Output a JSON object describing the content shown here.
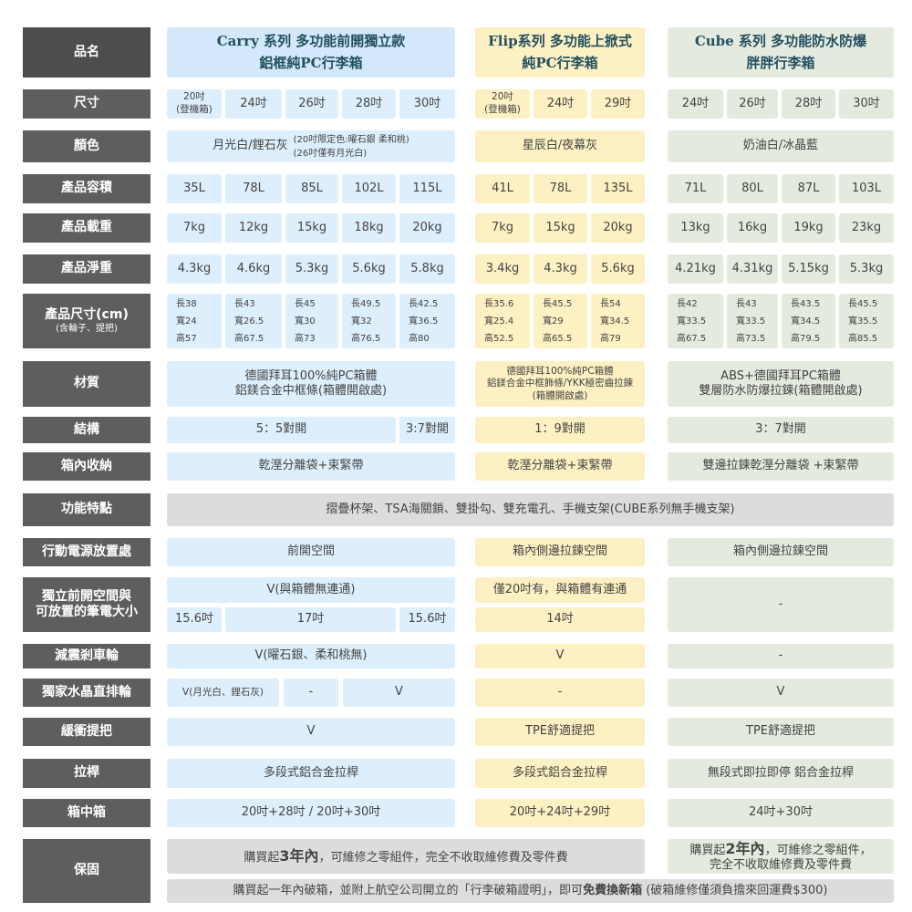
{
  "colors": {
    "label_bg": "#5e5e5e",
    "carry": "#ddeefc",
    "flip": "#fdf0c2",
    "cube": "#e5eadf",
    "shared": "#dcdcdc",
    "header_text": "#23505f"
  },
  "header": {
    "label": "品名",
    "carry": "Carry 系列  多功能前開獨立款\n鋁框純PC行李箱",
    "flip": "Flip系列 多功能上掀式\n純PC行李箱",
    "cube": "Cube 系列  多功能防水防爆\n胖胖行李箱"
  },
  "size": {
    "label": "尺寸",
    "carry": [
      "20吋\n(登機箱)",
      "24吋",
      "26吋",
      "28吋",
      "30吋"
    ],
    "flip": [
      "20吋\n(登機箱)",
      "24吋",
      "29吋"
    ],
    "cube": [
      "24吋",
      "26吋",
      "28吋",
      "30吋"
    ]
  },
  "color": {
    "label": "顏色",
    "carry_main": "月光白/鋰石灰",
    "carry_note": "(20吋限定色:曜石銀 柔和桃)\n(26吋僅有月光白)",
    "flip": "星辰白/夜幕灰",
    "cube": "奶油白/冰晶藍"
  },
  "capacity": {
    "label": "產品容積",
    "carry": [
      "35L",
      "78L",
      "85L",
      "102L",
      "115L"
    ],
    "flip": [
      "41L",
      "78L",
      "135L"
    ],
    "cube": [
      "71L",
      "80L",
      "87L",
      "103L"
    ]
  },
  "load": {
    "label": "產品載重",
    "carry": [
      "7kg",
      "12kg",
      "15kg",
      "18kg",
      "20kg"
    ],
    "flip": [
      "7kg",
      "15kg",
      "20kg"
    ],
    "cube": [
      "13kg",
      "16kg",
      "19kg",
      "23kg"
    ]
  },
  "weight": {
    "label": "產品淨重",
    "carry": [
      "4.3kg",
      "4.6kg",
      "5.3kg",
      "5.6kg",
      "5.8kg"
    ],
    "flip": [
      "3.4kg",
      "4.3kg",
      "5.6kg"
    ],
    "cube": [
      "4.21kg",
      "4.31kg",
      "5.15kg",
      "5.3kg"
    ]
  },
  "dims": {
    "label": "產品尺寸(cm)",
    "label_sub": "(含輪子、提把)",
    "carry": [
      "長38\n寬24\n高57",
      "長43\n寬26.5\n高67.5",
      "長45\n寬30\n高73",
      "長49.5\n寬32\n高76.5",
      "長42.5\n寬36.5\n高80"
    ],
    "flip": [
      "長35.6\n寬25.4\n高52.5",
      "長45.5\n寬29\n高65.5",
      "長54\n寬34.5\n高79"
    ],
    "cube": [
      "長42\n寬33.5\n高67.5",
      "長43\n寬33.5\n高73.5",
      "長43.5\n寬34.5\n高79.5",
      "長45.5\n寬35.5\n高85.5"
    ]
  },
  "material": {
    "label": "材質",
    "carry": "德國拜耳100%純PC箱體\n鋁鎂合金中框條(箱體開啟處)",
    "flip": "德國拜耳100%純PC箱體\n鋁鎂合金中框飾條/YKK極密齒拉鍊\n(箱體開啟處)",
    "cube": "ABS+德國拜耳PC箱體\n雙層防水防爆拉鍊(箱體開啟處)"
  },
  "structure": {
    "label": "結構",
    "carry": [
      "5：5對開",
      "3:7對開"
    ],
    "flip": "1：9對開",
    "cube": "3：7對開"
  },
  "storage": {
    "label": "箱內收納",
    "carry": "乾溼分離袋+束緊帶",
    "flip": "乾溼分離袋+束緊帶",
    "cube": "雙邊拉鍊乾溼分離袋 +束緊帶"
  },
  "features": {
    "label": "功能特點",
    "all": "摺疊杯架、TSA海關鎖、雙掛勾、雙充電孔、手機支架(CUBE系列無手機支架)"
  },
  "power": {
    "label": "行動電源放置處",
    "carry": "前開空間",
    "flip": "箱內側邊拉鍊空間",
    "cube": "箱內側邊拉鍊空間"
  },
  "front": {
    "label": "獨立前開空間與\n可放置的筆電大小",
    "carry_top": "V(與箱體無連通)",
    "carry": [
      "15.6吋",
      "17吋",
      "15.6吋"
    ],
    "flip_top": "僅20吋有，與箱體有連通",
    "flip": "14吋",
    "cube": "-"
  },
  "brake": {
    "label": "減震剎車輪",
    "carry": "V(曜石銀、柔和桃無)",
    "flip": "V",
    "cube": "-"
  },
  "crystal": {
    "label": "獨家水晶直排輪",
    "carry": [
      "V(月光白、鋰石灰)",
      "-",
      "V"
    ],
    "flip": "-",
    "cube": "V"
  },
  "bumper": {
    "label": "緩衝提把",
    "carry": "V",
    "flip": "TPE舒適提把",
    "cube": "TPE舒適提把"
  },
  "handle": {
    "label": "拉桿",
    "carry": "多段式鋁合金拉桿",
    "flip": "多段式鋁合金拉桿",
    "cube": "無段式即拉即停 鋁合金拉桿"
  },
  "nested": {
    "label": "箱中箱",
    "carry": "20吋+28吋 / 20吋+30吋",
    "flip": "20吋+24吋+29吋",
    "cube": "24吋+30吋"
  },
  "warranty": {
    "label": "保固",
    "carry_flip": {
      "pre": "購買起",
      "bold": "3年內",
      "post": "，可維修之零組件，完全不收取維修費及零件費"
    },
    "cube": {
      "pre": "購買起",
      "bold": "2年內",
      "post": "，可維修之零組件，\n完全不收取維修費及零件費"
    },
    "all": {
      "pre": "購買起一年內破箱，並附上航空公司開立的「行李破箱證明」，即可",
      "bold": "免費換新箱",
      "post": " (破箱維修僅須負擔來回運費$300)"
    }
  }
}
